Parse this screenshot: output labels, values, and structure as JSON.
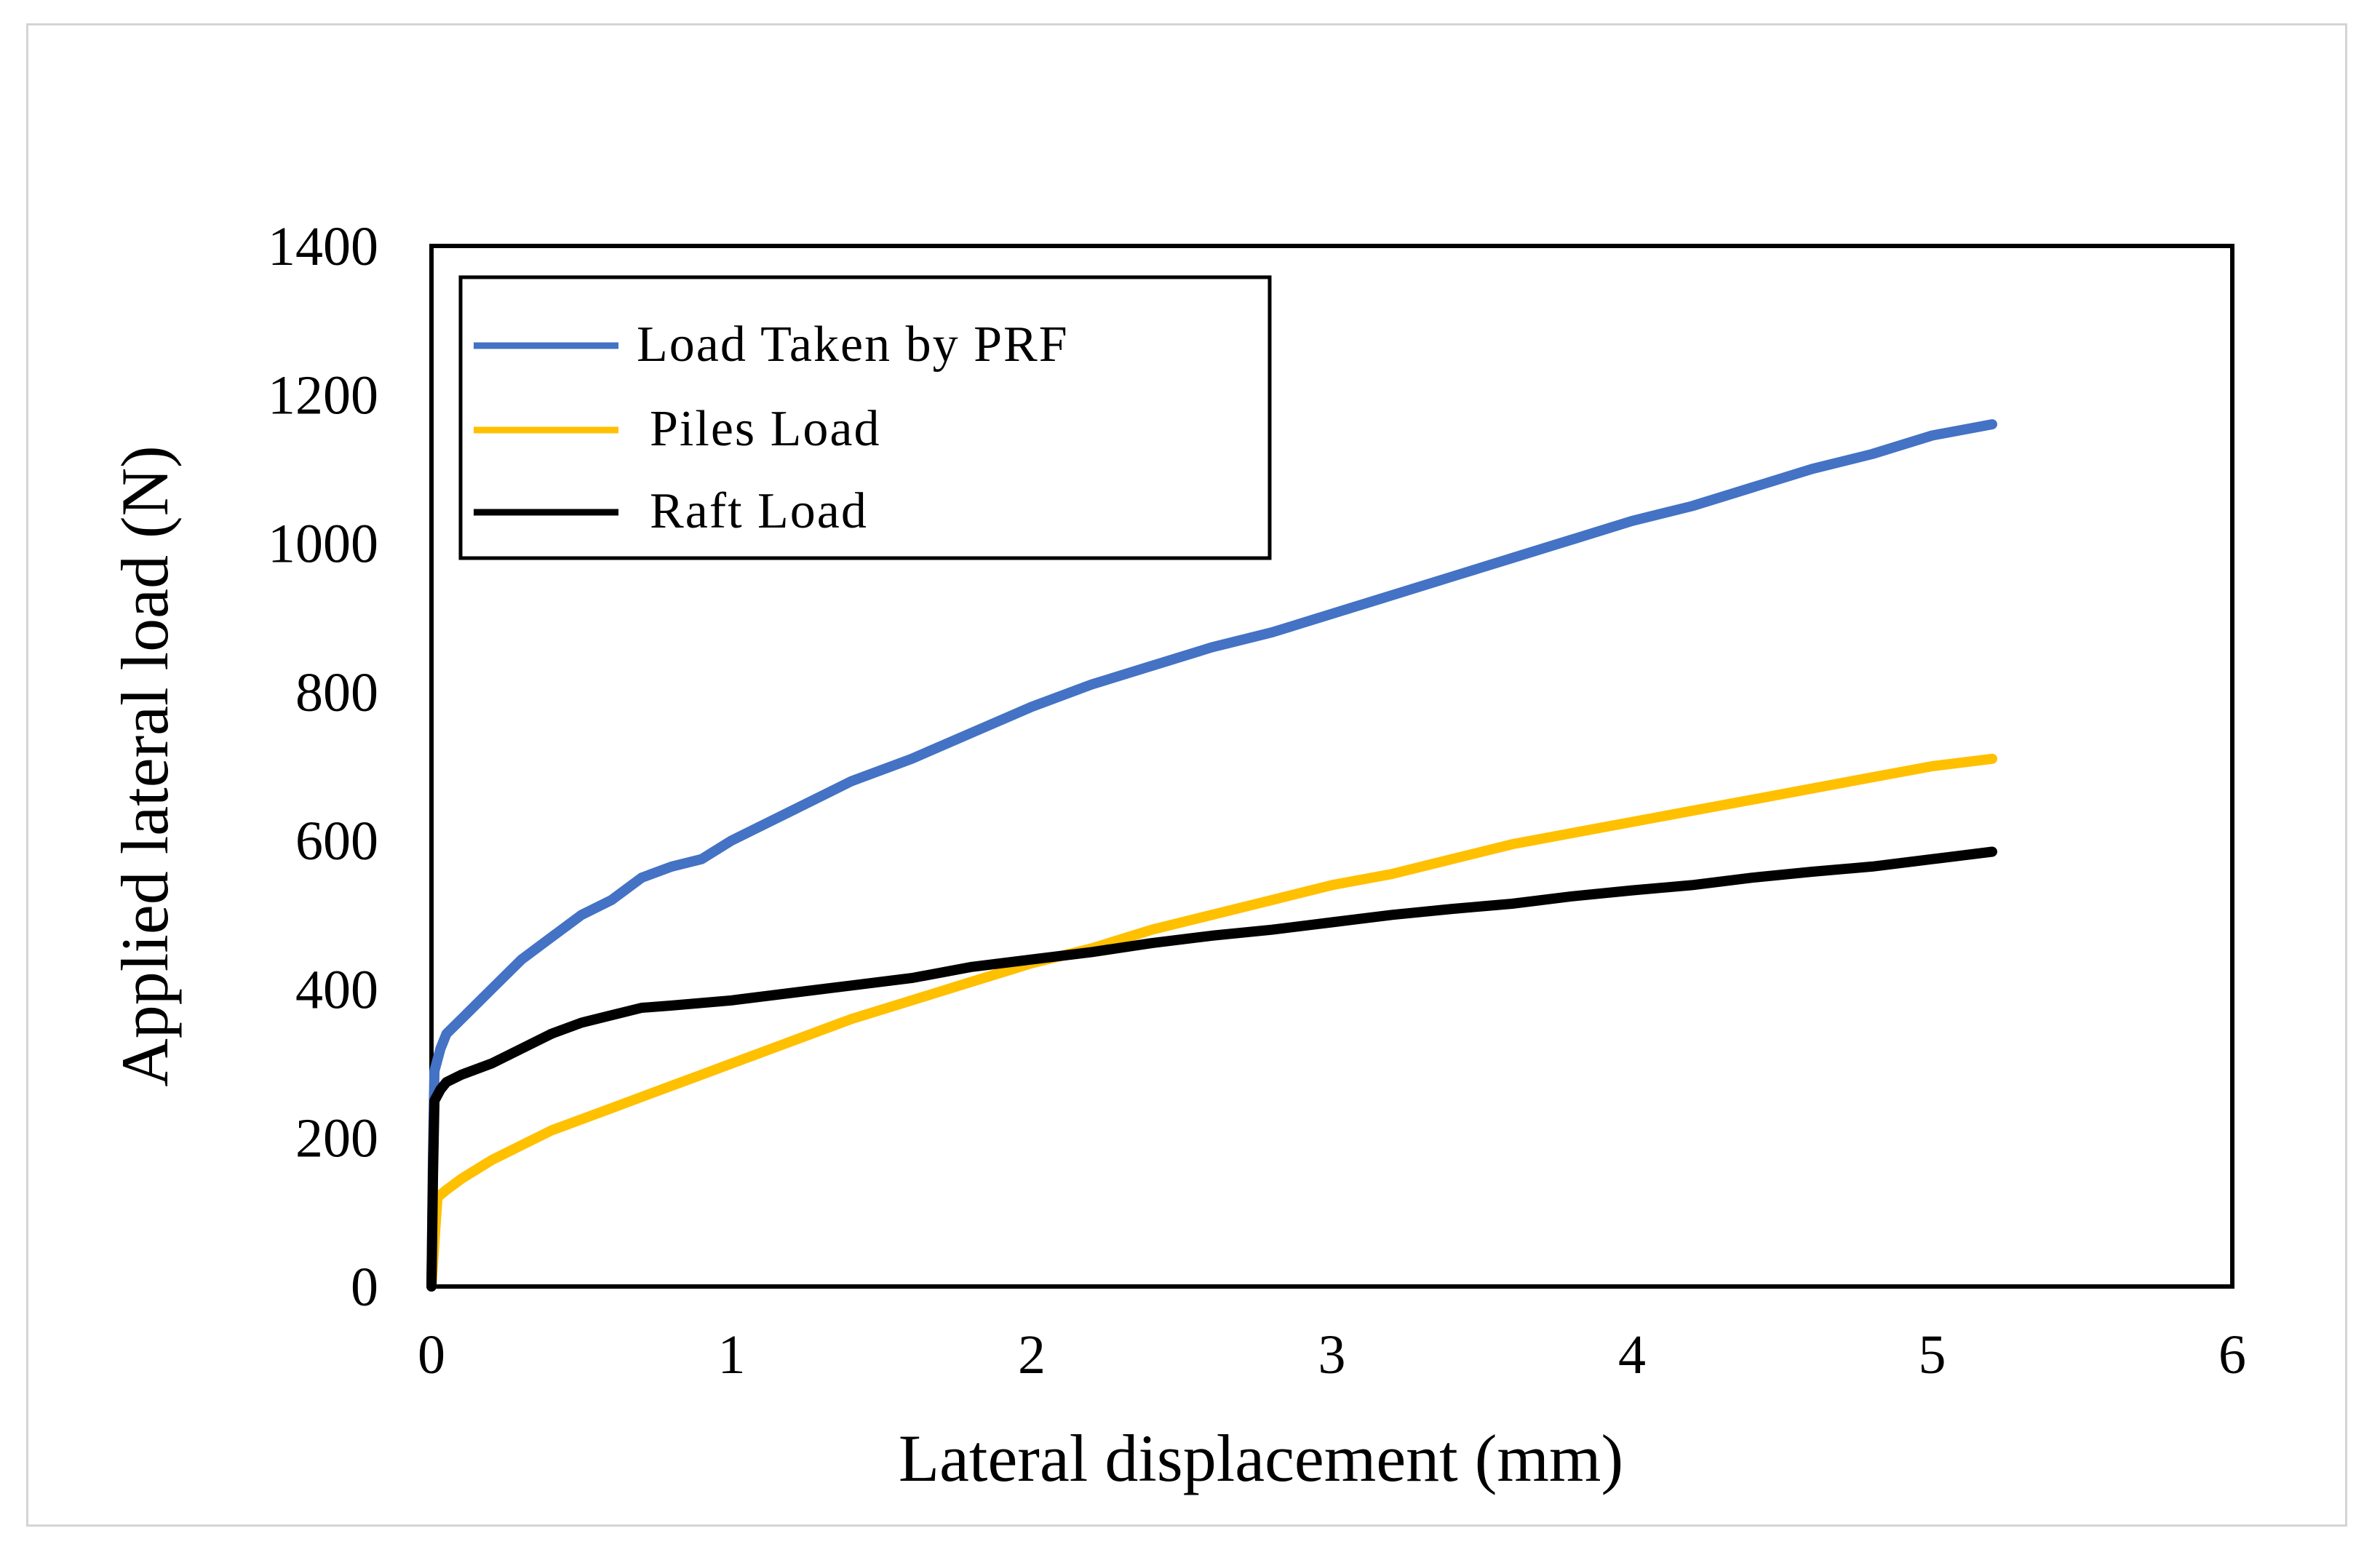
{
  "chart_data": {
    "type": "line",
    "xlabel": "Lateral displacement (mm)",
    "ylabel": "Applied lateral load (N)",
    "xlim": [
      0,
      6
    ],
    "ylim": [
      0,
      1400
    ],
    "xticks": [
      "0",
      "1",
      "2",
      "3",
      "4",
      "5",
      "6"
    ],
    "yticks": [
      "0",
      "200",
      "400",
      "600",
      "800",
      "1000",
      "1200",
      "1400"
    ],
    "grid": false,
    "legend_position": "top-left",
    "series": [
      {
        "name": "Load Taken by PRF",
        "color": "#4472c4",
        "x": [
          0,
          0.005,
          0.01,
          0.03,
          0.05,
          0.1,
          0.15,
          0.2,
          0.3,
          0.4,
          0.5,
          0.6,
          0.7,
          0.8,
          0.9,
          1.0,
          1.2,
          1.4,
          1.6,
          1.8,
          2.0,
          2.2,
          2.4,
          2.6,
          2.8,
          3.0,
          3.2,
          3.4,
          3.6,
          3.8,
          4.0,
          4.2,
          4.4,
          4.6,
          4.8,
          5.0,
          5.2
        ],
        "y": [
          0,
          180,
          290,
          320,
          340,
          360,
          380,
          400,
          440,
          470,
          500,
          520,
          550,
          565,
          575,
          600,
          640,
          680,
          710,
          745,
          780,
          810,
          835,
          860,
          880,
          905,
          930,
          955,
          980,
          1005,
          1030,
          1050,
          1075,
          1100,
          1120,
          1145,
          1160
        ]
      },
      {
        "name": "Piles Load",
        "color": "#ffc000",
        "x": [
          0,
          0.01,
          0.02,
          0.05,
          0.1,
          0.2,
          0.3,
          0.4,
          0.5,
          0.6,
          0.7,
          0.8,
          0.9,
          1.0,
          1.2,
          1.4,
          1.6,
          1.8,
          2.0,
          2.2,
          2.4,
          2.6,
          2.8,
          3.0,
          3.2,
          3.4,
          3.6,
          3.8,
          4.0,
          4.2,
          4.4,
          4.6,
          4.8,
          5.0,
          5.2
        ],
        "y": [
          0,
          60,
          120,
          130,
          145,
          170,
          190,
          210,
          225,
          240,
          255,
          270,
          285,
          300,
          330,
          360,
          385,
          410,
          435,
          455,
          480,
          500,
          520,
          540,
          555,
          575,
          595,
          610,
          625,
          640,
          655,
          670,
          685,
          700,
          710
        ]
      },
      {
        "name": "Raft Load",
        "color": "#000000",
        "x": [
          0,
          0.005,
          0.01,
          0.03,
          0.05,
          0.1,
          0.2,
          0.3,
          0.4,
          0.5,
          0.6,
          0.7,
          0.8,
          1.0,
          1.2,
          1.4,
          1.6,
          1.8,
          2.0,
          2.2,
          2.4,
          2.6,
          2.8,
          3.0,
          3.2,
          3.4,
          3.6,
          3.8,
          4.0,
          4.2,
          4.4,
          4.6,
          4.8,
          5.0,
          5.2
        ],
        "y": [
          0,
          150,
          250,
          265,
          275,
          285,
          300,
          320,
          340,
          355,
          365,
          375,
          378,
          385,
          395,
          405,
          415,
          430,
          440,
          450,
          462,
          472,
          480,
          490,
          500,
          508,
          515,
          525,
          533,
          540,
          550,
          558,
          565,
          575,
          585
        ]
      }
    ]
  }
}
